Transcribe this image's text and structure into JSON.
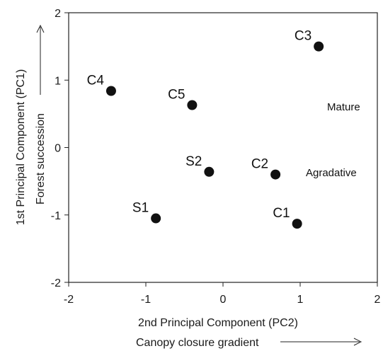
{
  "chart_data": {
    "type": "scatter",
    "xlabel": "2nd Principal Component (PC2)",
    "xlabel_sub": "Canopy closure gradient",
    "ylabel": "1st Principal Component (PC1)",
    "ylabel_sub": "Forest succession",
    "xlim": [
      -2,
      2
    ],
    "ylim": [
      -2,
      2
    ],
    "xticks": [
      "-2",
      "-1",
      "0",
      "1",
      "2"
    ],
    "yticks": [
      "-2",
      "-1",
      "0",
      "1",
      "2"
    ],
    "grid": false,
    "legend": "none",
    "marker_color": "#111111",
    "points": [
      {
        "label": "C3",
        "x": 1.24,
        "y": 1.5
      },
      {
        "label": "C4",
        "x": -1.45,
        "y": 0.84
      },
      {
        "label": "C5",
        "x": -0.4,
        "y": 0.63
      },
      {
        "label": "S2",
        "x": -0.18,
        "y": -0.36
      },
      {
        "label": "C2",
        "x": 0.68,
        "y": -0.4
      },
      {
        "label": "S1",
        "x": -0.87,
        "y": -1.05
      },
      {
        "label": "C1",
        "x": 0.96,
        "y": -1.13
      }
    ],
    "annotations": [
      "Mature",
      "Agradative"
    ]
  }
}
